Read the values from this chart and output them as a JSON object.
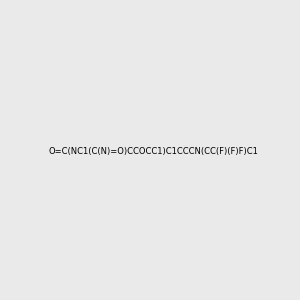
{
  "smiles": "O=C(NC1(C(N)=O)CCOCC1)C1CCCN(CC(F)(F)F)C1",
  "img_size": [
    300,
    300
  ],
  "background_color": "#eaeaea",
  "title": ""
}
